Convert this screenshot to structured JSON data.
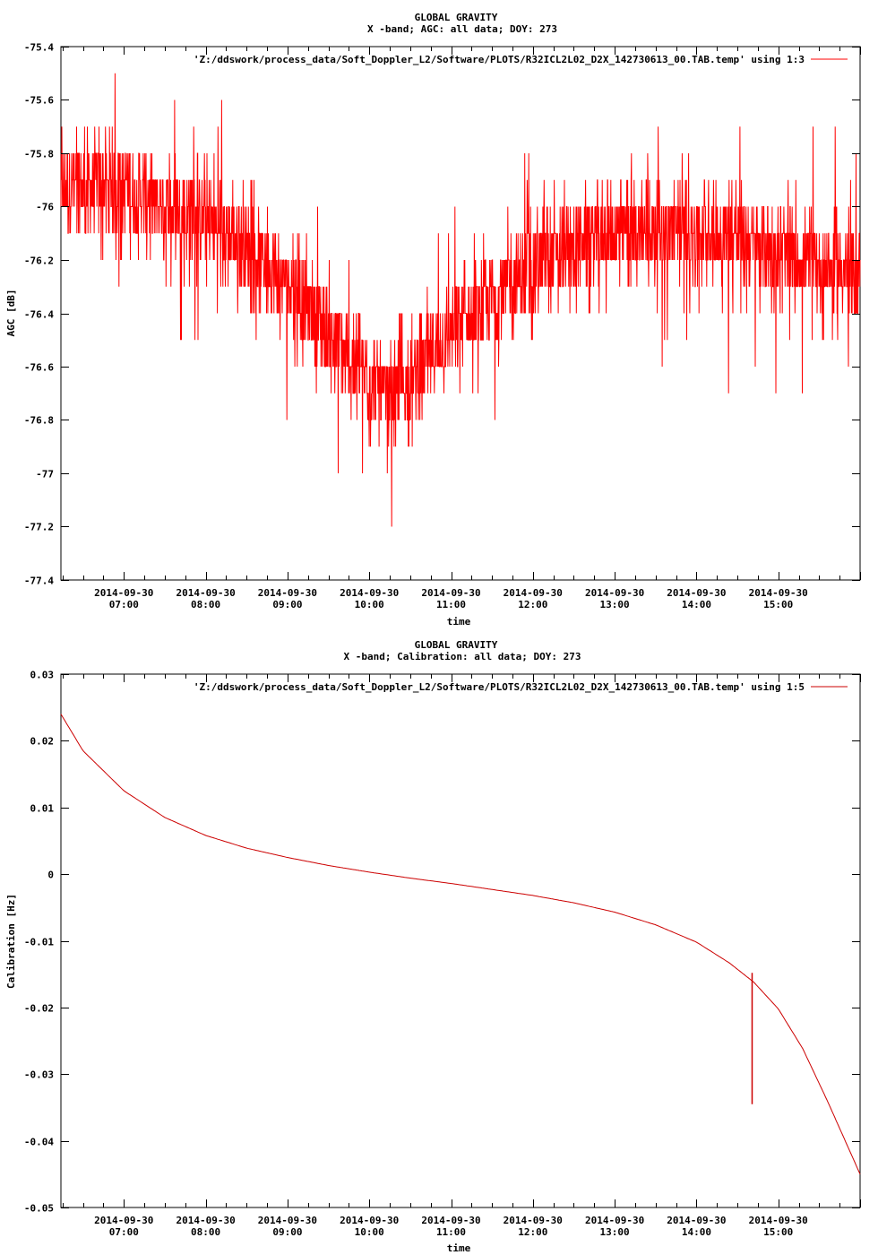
{
  "chart_data": [
    {
      "type": "line",
      "title": "GLOBAL GRAVITY",
      "subtitle": "X -band; AGC: all data; DOY: 273",
      "xlabel": "time",
      "ylabel": "AGC [dB]",
      "ylim": [
        -77.4,
        -75.4
      ],
      "yticks": [
        -75.4,
        -75.6,
        -75.8,
        -76,
        -76.2,
        -76.4,
        -76.6,
        -76.8,
        -77,
        -77.2,
        -77.4
      ],
      "xlim": [
        6.23,
        16.0
      ],
      "xticks": [
        {
          "value": 7,
          "line1": "2014-09-30",
          "line2": "07:00"
        },
        {
          "value": 8,
          "line1": "2014-09-30",
          "line2": "08:00"
        },
        {
          "value": 9,
          "line1": "2014-09-30",
          "line2": "09:00"
        },
        {
          "value": 10,
          "line1": "2014-09-30",
          "line2": "10:00"
        },
        {
          "value": 11,
          "line1": "2014-09-30",
          "line2": "11:00"
        },
        {
          "value": 12,
          "line1": "2014-09-30",
          "line2": "12:00"
        },
        {
          "value": 13,
          "line1": "2014-09-30",
          "line2": "13:00"
        },
        {
          "value": 14,
          "line1": "2014-09-30",
          "line2": "14:00"
        },
        {
          "value": 15,
          "line1": "2014-09-30",
          "line2": "15:00"
        }
      ],
      "grid": false,
      "legend_position": "top-right",
      "series": [
        {
          "name": "'Z:/ddswork/process_data/Soft_Doppler_L2/Software/PLOTS/R32ICL2L02_D2X_142730613_00.TAB.temp' using 1:3",
          "color": "#ff0000",
          "noise": true,
          "x": [
            6.23,
            6.6,
            7.0,
            7.5,
            8.0,
            8.5,
            9.0,
            9.5,
            10.0,
            10.3,
            10.6,
            11.0,
            11.5,
            12.0,
            12.5,
            13.0,
            13.5,
            14.0,
            14.5,
            15.0,
            15.5,
            16.0
          ],
          "y": [
            -75.95,
            -75.92,
            -75.93,
            -76.0,
            -76.05,
            -76.15,
            -76.28,
            -76.48,
            -76.65,
            -76.72,
            -76.62,
            -76.48,
            -76.35,
            -76.22,
            -76.15,
            -76.1,
            -76.08,
            -76.1,
            -76.12,
            -76.18,
            -76.22,
            -76.25
          ],
          "min": -77.3,
          "max": -75.4
        }
      ]
    },
    {
      "type": "line",
      "title": "GLOBAL GRAVITY",
      "subtitle": "X -band; Calibration: all data; DOY: 273",
      "xlabel": "time",
      "ylabel": "Calibration [Hz]",
      "ylim": [
        -0.05,
        0.03
      ],
      "yticks": [
        0.03,
        0.02,
        0.01,
        0,
        -0.01,
        -0.02,
        -0.03,
        -0.04,
        -0.05
      ],
      "xlim": [
        6.23,
        16.0
      ],
      "xticks": [
        {
          "value": 7,
          "line1": "2014-09-30",
          "line2": "07:00"
        },
        {
          "value": 8,
          "line1": "2014-09-30",
          "line2": "08:00"
        },
        {
          "value": 9,
          "line1": "2014-09-30",
          "line2": "09:00"
        },
        {
          "value": 10,
          "line1": "2014-09-30",
          "line2": "10:00"
        },
        {
          "value": 11,
          "line1": "2014-09-30",
          "line2": "11:00"
        },
        {
          "value": 12,
          "line1": "2014-09-30",
          "line2": "12:00"
        },
        {
          "value": 13,
          "line1": "2014-09-30",
          "line2": "13:00"
        },
        {
          "value": 14,
          "line1": "2014-09-30",
          "line2": "14:00"
        },
        {
          "value": 15,
          "line1": "2014-09-30",
          "line2": "15:00"
        }
      ],
      "grid": false,
      "legend_position": "top-right",
      "series": [
        {
          "name": "'Z:/ddswork/process_data/Soft_Doppler_L2/Software/PLOTS/R32ICL2L02_D2X_142730613_00.TAB.temp' using 1:5",
          "color": "#cc0000",
          "noise": false,
          "x": [
            6.23,
            6.5,
            7.0,
            7.5,
            8.0,
            8.5,
            9.0,
            9.5,
            10.0,
            10.5,
            11.0,
            11.5,
            12.0,
            12.5,
            13.0,
            13.5,
            14.0,
            14.4,
            14.7,
            15.0,
            15.3,
            15.6,
            15.8,
            16.0
          ],
          "y": [
            0.024,
            0.0185,
            0.0125,
            0.0085,
            0.0058,
            0.0039,
            0.0025,
            0.0013,
            0.0003,
            -0.0006,
            -0.0014,
            -0.0023,
            -0.0032,
            -0.0043,
            -0.0057,
            -0.0076,
            -0.0102,
            -0.0133,
            -0.0162,
            -0.0202,
            -0.0262,
            -0.034,
            -0.0395,
            -0.045
          ],
          "spike": {
            "x": 14.68,
            "ymin": -0.0345,
            "ymax": -0.0148
          }
        }
      ]
    }
  ]
}
